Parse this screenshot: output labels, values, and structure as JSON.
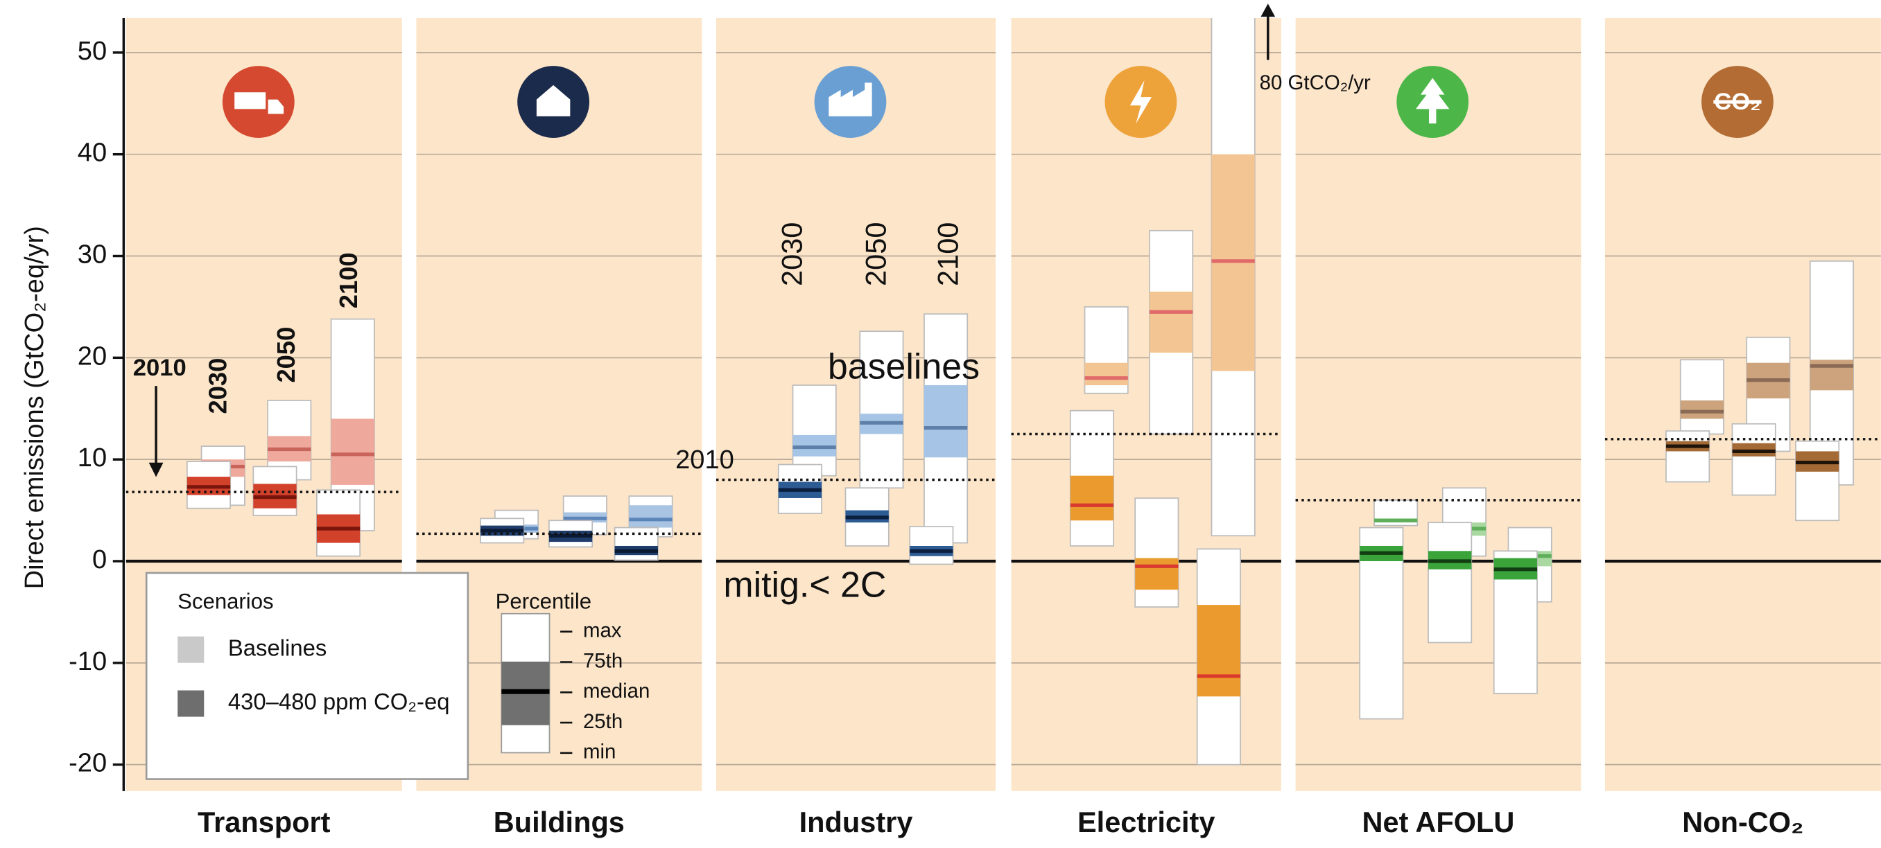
{
  "chart_data": {
    "type": "box",
    "ylabel": "Direct emissions (GtCO₂-eq/yr)",
    "ylim": [
      -22.6,
      53.4
    ],
    "yticks": [
      -20,
      -10,
      0,
      10,
      20,
      30,
      40,
      50
    ],
    "grid": true,
    "annotation": "80 GtCO₂/yr",
    "scenarios_title": "Scenarios",
    "scenarios": [
      {
        "name": "Baselines",
        "color": "#c9c9c9"
      },
      {
        "name": "430–480 ppm CO₂-eq",
        "color": "#6e6e6e"
      }
    ],
    "percentile_title": "Percentile",
    "percentiles": [
      "max",
      "75th",
      "median",
      "25th",
      "min"
    ],
    "panels": [
      {
        "name": "Transport",
        "icon_color": "#d4492f",
        "base_color": "#efa89c",
        "mit_color": "#d2412a",
        "base_median": "#c9645a",
        "mit_median": "#7a150c",
        "ref_2010": 6.8,
        "labels": [
          "2010",
          "2030",
          "2050",
          "2100"
        ],
        "baseline": [
          {
            "min": 5.5,
            "q1": 8.3,
            "median": 9.3,
            "q3": 10.0,
            "max": 11.3
          },
          {
            "min": 8.0,
            "q1": 9.8,
            "median": 11.0,
            "q3": 12.3,
            "max": 15.8
          },
          {
            "min": 3.0,
            "q1": 7.5,
            "median": 10.5,
            "q3": 14.0,
            "max": 23.8
          }
        ],
        "mitigation": [
          {
            "min": 5.2,
            "q1": 6.5,
            "median": 7.3,
            "q3": 8.3,
            "max": 9.8
          },
          {
            "min": 4.5,
            "q1": 5.2,
            "median": 6.3,
            "q3": 7.6,
            "max": 9.3
          },
          {
            "min": 0.5,
            "q1": 1.8,
            "median": 3.2,
            "q3": 4.6,
            "max": 7.0
          }
        ]
      },
      {
        "name": "Buildings",
        "icon_color": "#1b2b4b",
        "base_color": "#a9c4e3",
        "mit_color": "#1f3d6b",
        "base_median": "#5b84b8",
        "mit_median": "#0b1a33",
        "ref_2010": 2.7,
        "baseline": [
          {
            "min": 2.2,
            "q1": 2.8,
            "median": 3.2,
            "q3": 3.6,
            "max": 5.0
          },
          {
            "min": 2.6,
            "q1": 3.8,
            "median": 4.2,
            "q3": 4.8,
            "max": 6.4
          },
          {
            "min": 2.4,
            "q1": 3.3,
            "median": 4.1,
            "q3": 5.5,
            "max": 6.4
          }
        ],
        "mitigation": [
          {
            "min": 1.8,
            "q1": 2.5,
            "median": 3.0,
            "q3": 3.5,
            "max": 4.2
          },
          {
            "min": 1.4,
            "q1": 1.9,
            "median": 2.5,
            "q3": 3.0,
            "max": 4.0
          },
          {
            "min": 0.1,
            "q1": 0.6,
            "median": 1.0,
            "q3": 1.5,
            "max": 3.3
          }
        ]
      },
      {
        "name": "Industry",
        "icon_color": "#6a9fd3",
        "base_color": "#a6c5e6",
        "mit_color": "#2d5b93",
        "base_median": "#5e7fa8",
        "mit_median": "#0b1f3f",
        "ref_2010": 8.0,
        "labels": [
          "2030",
          "2050",
          "2100",
          "baselines",
          "2010",
          "mitig.< 2C"
        ],
        "baseline": [
          {
            "min": 8.4,
            "q1": 10.3,
            "median": 11.2,
            "q3": 12.4,
            "max": 17.3
          },
          {
            "min": 7.2,
            "q1": 12.5,
            "median": 13.6,
            "q3": 14.5,
            "max": 22.6
          },
          {
            "min": 1.8,
            "q1": 10.2,
            "median": 13.1,
            "q3": 17.3,
            "max": 24.3
          }
        ],
        "mitigation": [
          {
            "min": 4.7,
            "q1": 6.2,
            "median": 7.0,
            "q3": 7.8,
            "max": 9.5
          },
          {
            "min": 1.5,
            "q1": 3.8,
            "median": 4.3,
            "q3": 5.0,
            "max": 7.2
          },
          {
            "min": -0.3,
            "q1": 0.5,
            "median": 1.0,
            "q3": 1.5,
            "max": 3.4
          }
        ]
      },
      {
        "name": "Electricity",
        "icon_color": "#eea23a",
        "base_color": "#f3c592",
        "mit_color": "#eb9a2e",
        "base_median": "#e06a6a",
        "mit_median": "#d9392e",
        "ref_2010": 12.5,
        "baseline": [
          {
            "min": 16.5,
            "q1": 17.3,
            "median": 18.0,
            "q3": 19.5,
            "max": 25.0
          },
          {
            "min": 12.5,
            "q1": 20.5,
            "median": 24.5,
            "q3": 26.5,
            "max": 32.5
          },
          {
            "min": 2.5,
            "q1": 18.7,
            "median": 29.5,
            "q3": 40.0,
            "max": 80
          }
        ],
        "mitigation": [
          {
            "min": 1.5,
            "q1": 4.0,
            "median": 5.5,
            "q3": 8.4,
            "max": 14.8
          },
          {
            "min": -4.5,
            "q1": -2.8,
            "median": -0.5,
            "q3": 0.3,
            "max": 6.2
          },
          {
            "min": -20,
            "q1": -13.3,
            "median": -11.3,
            "q3": -4.3,
            "max": 1.2
          }
        ]
      },
      {
        "name": "Net AFOLU",
        "icon_color": "#4cb748",
        "base_color": "#a9d9a0",
        "mit_color": "#3aa33a",
        "base_median": "#5fae5a",
        "mit_median": "#123d12",
        "ref_2010": 6.0,
        "baseline": [
          {
            "min": 3.5,
            "q1": 3.8,
            "median": 4.0,
            "q3": 4.2,
            "max": 6.0
          },
          {
            "min": 0.5,
            "q1": 2.5,
            "median": 3.2,
            "q3": 3.8,
            "max": 7.2
          },
          {
            "min": -4.0,
            "q1": -0.5,
            "median": 0.5,
            "q3": 1.0,
            "max": 3.3
          }
        ],
        "mitigation": [
          {
            "min": -15.5,
            "q1": 0.0,
            "median": 0.8,
            "q3": 1.5,
            "max": 3.3
          },
          {
            "min": -8.0,
            "q1": -0.8,
            "median": 0.0,
            "q3": 1.0,
            "max": 3.8
          },
          {
            "min": -13.0,
            "q1": -1.8,
            "median": -0.8,
            "q3": 0.3,
            "max": 1.0
          }
        ]
      },
      {
        "name": "Non-CO₂",
        "icon_color": "#b36c33",
        "icon_text": "CO₂",
        "base_color": "#cca37c",
        "mit_color": "#a46a35",
        "base_median": "#8a6a55",
        "mit_median": "#1f130a",
        "ref_2010": 12.0,
        "baseline": [
          {
            "min": 12.5,
            "q1": 14.0,
            "median": 14.7,
            "q3": 15.8,
            "max": 19.8
          },
          {
            "min": 10.8,
            "q1": 16.0,
            "median": 17.8,
            "q3": 19.5,
            "max": 22.0
          },
          {
            "min": 7.5,
            "q1": 16.8,
            "median": 19.2,
            "q3": 19.8,
            "max": 29.5
          }
        ],
        "mitigation": [
          {
            "min": 7.8,
            "q1": 10.8,
            "median": 11.3,
            "q3": 11.8,
            "max": 12.8
          },
          {
            "min": 6.5,
            "q1": 10.3,
            "median": 10.8,
            "q3": 11.6,
            "max": 13.5
          },
          {
            "min": 4.0,
            "q1": 8.8,
            "median": 9.7,
            "q3": 10.8,
            "max": 11.8
          }
        ]
      }
    ]
  }
}
